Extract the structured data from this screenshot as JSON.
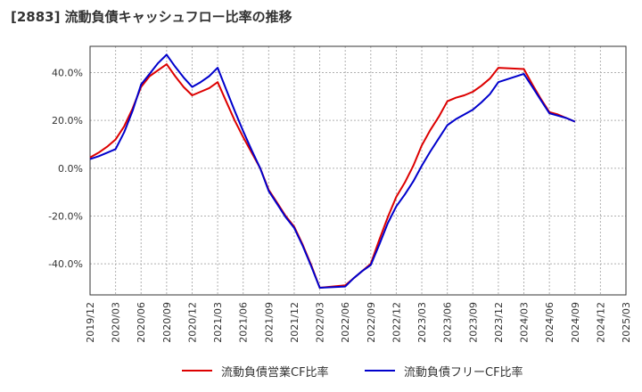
{
  "title": "[2883]  流動負債キャッシュフロー比率の推移",
  "chart_data": {
    "type": "line",
    "title": "[2883]  流動負債キャッシュフロー比率の推移",
    "xlabel": "",
    "ylabel": "",
    "x_ticks": [
      "2019/12",
      "2020/03",
      "2020/06",
      "2020/09",
      "2020/12",
      "2021/03",
      "2021/06",
      "2021/09",
      "2021/12",
      "2022/03",
      "2022/06",
      "2022/09",
      "2022/12",
      "2023/03",
      "2023/06",
      "2023/09",
      "2023/12",
      "2024/03",
      "2024/06",
      "2024/09",
      "2024/12",
      "2025/03"
    ],
    "y_ticks": [
      -40,
      -20,
      0,
      20,
      40
    ],
    "y_tick_labels": [
      "-40.0%",
      "-20.0%",
      "0.0%",
      "20.0%",
      "40.0%"
    ],
    "ylim": [
      -53,
      51
    ],
    "grid": true,
    "legend_position": "bottom",
    "series": [
      {
        "name": "流動負債営業CF比率",
        "color": "#dd0000",
        "points": [
          {
            "x": "2019/12",
            "y": 4.5
          },
          {
            "x": "2020/01",
            "y": 6.5
          },
          {
            "x": "2020/02",
            "y": 9.0
          },
          {
            "x": "2020/03",
            "y": 12.0
          },
          {
            "x": "2020/04",
            "y": 17.5
          },
          {
            "x": "2020/05",
            "y": 25.0
          },
          {
            "x": "2020/06",
            "y": 34.0
          },
          {
            "x": "2020/07",
            "y": 38.5
          },
          {
            "x": "2020/08",
            "y": 41.0
          },
          {
            "x": "2020/09",
            "y": 43.5
          },
          {
            "x": "2020/10",
            "y": 38.5
          },
          {
            "x": "2020/11",
            "y": 34.0
          },
          {
            "x": "2020/12",
            "y": 30.5
          },
          {
            "x": "2021/01",
            "y": 32.0
          },
          {
            "x": "2021/02",
            "y": 33.5
          },
          {
            "x": "2021/03",
            "y": 36.0
          },
          {
            "x": "2021/04",
            "y": 28.0
          },
          {
            "x": "2021/05",
            "y": 20.0
          },
          {
            "x": "2021/06",
            "y": 13.0
          },
          {
            "x": "2021/07",
            "y": 6.5
          },
          {
            "x": "2021/08",
            "y": 0.0
          },
          {
            "x": "2021/09",
            "y": -9.0
          },
          {
            "x": "2021/10",
            "y": -14.5
          },
          {
            "x": "2021/11",
            "y": -20.0
          },
          {
            "x": "2021/12",
            "y": -24.5
          },
          {
            "x": "2022/01",
            "y": -32.0
          },
          {
            "x": "2022/02",
            "y": -40.5
          },
          {
            "x": "2022/03",
            "y": -50.0
          },
          {
            "x": "2022/06",
            "y": -49.0
          },
          {
            "x": "2022/07",
            "y": -46.0
          },
          {
            "x": "2022/08",
            "y": -43.0
          },
          {
            "x": "2022/09",
            "y": -40.0
          },
          {
            "x": "2022/10",
            "y": -30.0
          },
          {
            "x": "2022/11",
            "y": -20.5
          },
          {
            "x": "2022/12",
            "y": -12.0
          },
          {
            "x": "2023/01",
            "y": -6.0
          },
          {
            "x": "2023/02",
            "y": 1.0
          },
          {
            "x": "2023/03",
            "y": 9.5
          },
          {
            "x": "2023/04",
            "y": 16.0
          },
          {
            "x": "2023/05",
            "y": 21.5
          },
          {
            "x": "2023/06",
            "y": 28.0
          },
          {
            "x": "2023/07",
            "y": 29.5
          },
          {
            "x": "2023/08",
            "y": 30.5
          },
          {
            "x": "2023/09",
            "y": 32.0
          },
          {
            "x": "2023/10",
            "y": 34.5
          },
          {
            "x": "2023/11",
            "y": 37.5
          },
          {
            "x": "2023/12",
            "y": 42.0
          },
          {
            "x": "2024/03",
            "y": 41.5
          },
          {
            "x": "2024/04",
            "y": 35.0
          },
          {
            "x": "2024/05",
            "y": 29.0
          },
          {
            "x": "2024/06",
            "y": 23.5
          },
          {
            "x": "2024/07",
            "y": 22.5
          },
          {
            "x": "2024/08",
            "y": 21.0
          },
          {
            "x": "2024/09",
            "y": 19.5
          }
        ]
      },
      {
        "name": "流動負債フリーCF比率",
        "color": "#0000cc",
        "points": [
          {
            "x": "2019/12",
            "y": 3.8
          },
          {
            "x": "2020/01",
            "y": 5.0
          },
          {
            "x": "2020/02",
            "y": 6.5
          },
          {
            "x": "2020/03",
            "y": 8.0
          },
          {
            "x": "2020/04",
            "y": 15.0
          },
          {
            "x": "2020/05",
            "y": 24.0
          },
          {
            "x": "2020/06",
            "y": 35.0
          },
          {
            "x": "2020/07",
            "y": 39.5
          },
          {
            "x": "2020/08",
            "y": 44.0
          },
          {
            "x": "2020/09",
            "y": 47.5
          },
          {
            "x": "2020/10",
            "y": 42.5
          },
          {
            "x": "2020/11",
            "y": 38.0
          },
          {
            "x": "2020/12",
            "y": 34.0
          },
          {
            "x": "2021/01",
            "y": 36.0
          },
          {
            "x": "2021/02",
            "y": 38.5
          },
          {
            "x": "2021/03",
            "y": 42.0
          },
          {
            "x": "2021/04",
            "y": 33.0
          },
          {
            "x": "2021/05",
            "y": 24.0
          },
          {
            "x": "2021/06",
            "y": 15.5
          },
          {
            "x": "2021/07",
            "y": 7.5
          },
          {
            "x": "2021/08",
            "y": 0.0
          },
          {
            "x": "2021/09",
            "y": -9.5
          },
          {
            "x": "2021/10",
            "y": -15.0
          },
          {
            "x": "2021/11",
            "y": -20.5
          },
          {
            "x": "2021/12",
            "y": -25.0
          },
          {
            "x": "2022/01",
            "y": -32.5
          },
          {
            "x": "2022/02",
            "y": -41.0
          },
          {
            "x": "2022/03",
            "y": -50.0
          },
          {
            "x": "2022/06",
            "y": -49.5
          },
          {
            "x": "2022/07",
            "y": -46.0
          },
          {
            "x": "2022/08",
            "y": -43.0
          },
          {
            "x": "2022/09",
            "y": -40.5
          },
          {
            "x": "2022/10",
            "y": -32.0
          },
          {
            "x": "2022/11",
            "y": -23.0
          },
          {
            "x": "2022/12",
            "y": -16.0
          },
          {
            "x": "2023/01",
            "y": -11.0
          },
          {
            "x": "2023/02",
            "y": -5.5
          },
          {
            "x": "2023/03",
            "y": 1.0
          },
          {
            "x": "2023/04",
            "y": 7.0
          },
          {
            "x": "2023/05",
            "y": 12.5
          },
          {
            "x": "2023/06",
            "y": 18.0
          },
          {
            "x": "2023/07",
            "y": 20.5
          },
          {
            "x": "2023/08",
            "y": 22.5
          },
          {
            "x": "2023/09",
            "y": 24.5
          },
          {
            "x": "2023/10",
            "y": 27.5
          },
          {
            "x": "2023/11",
            "y": 31.0
          },
          {
            "x": "2023/12",
            "y": 36.0
          },
          {
            "x": "2024/03",
            "y": 39.5
          },
          {
            "x": "2024/04",
            "y": 34.0
          },
          {
            "x": "2024/05",
            "y": 28.5
          },
          {
            "x": "2024/06",
            "y": 23.0
          },
          {
            "x": "2024/07",
            "y": 22.0
          },
          {
            "x": "2024/08",
            "y": 21.0
          },
          {
            "x": "2024/09",
            "y": 19.5
          }
        ]
      }
    ]
  }
}
